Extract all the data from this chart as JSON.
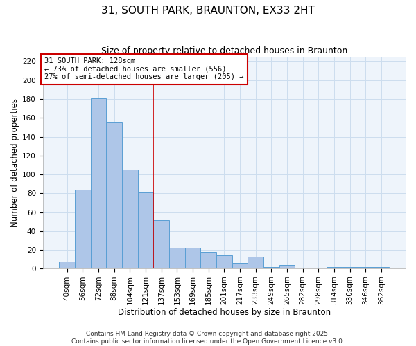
{
  "title": "31, SOUTH PARK, BRAUNTON, EX33 2HT",
  "subtitle": "Size of property relative to detached houses in Braunton",
  "xlabel": "Distribution of detached houses by size in Braunton",
  "ylabel": "Number of detached properties",
  "bar_labels": [
    "40sqm",
    "56sqm",
    "72sqm",
    "88sqm",
    "104sqm",
    "121sqm",
    "137sqm",
    "153sqm",
    "169sqm",
    "185sqm",
    "201sqm",
    "217sqm",
    "233sqm",
    "249sqm",
    "265sqm",
    "282sqm",
    "298sqm",
    "314sqm",
    "330sqm",
    "346sqm",
    "362sqm"
  ],
  "bar_values": [
    8,
    84,
    181,
    155,
    105,
    81,
    52,
    22,
    22,
    18,
    14,
    6,
    13,
    2,
    4,
    0,
    1,
    2,
    2,
    2,
    2
  ],
  "bar_color": "#aec6e8",
  "bar_edgecolor": "#5a9fd4",
  "vline_x": 5.5,
  "vline_color": "#cc0000",
  "ylim": [
    0,
    225
  ],
  "yticks": [
    0,
    20,
    40,
    60,
    80,
    100,
    120,
    140,
    160,
    180,
    200,
    220
  ],
  "annotation_line1": "31 SOUTH PARK: 128sqm",
  "annotation_line2": "← 73% of detached houses are smaller (556)",
  "annotation_line3": "27% of semi-detached houses are larger (205) →",
  "annotation_box_edgecolor": "#cc0000",
  "footer_line1": "Contains HM Land Registry data © Crown copyright and database right 2025.",
  "footer_line2": "Contains public sector information licensed under the Open Government Licence v3.0.",
  "background_color": "#ffffff",
  "plot_bg_color": "#eef4fb",
  "grid_color": "#ccddee",
  "title_fontsize": 11,
  "subtitle_fontsize": 9,
  "axis_label_fontsize": 8.5,
  "tick_fontsize": 7.5,
  "annotation_fontsize": 7.5,
  "footer_fontsize": 6.5
}
